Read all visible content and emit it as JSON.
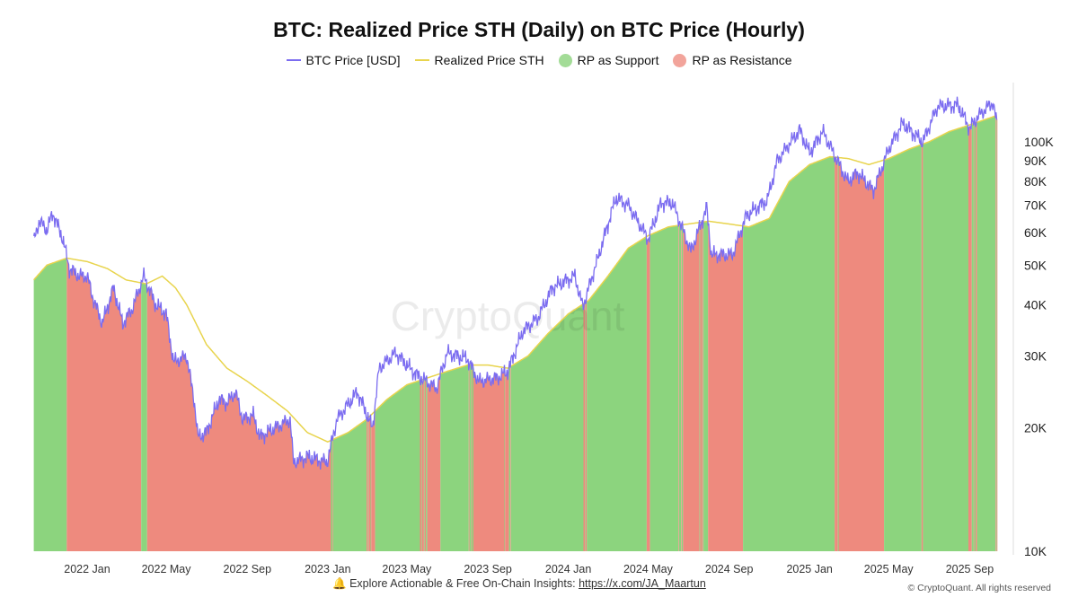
{
  "chart_data": {
    "type": "line",
    "title": "BTC: Realized Price STH (Daily) on BTC Price (Hourly)",
    "y_scale": "log",
    "ylim": [
      10000,
      140000
    ],
    "y_ticks": [
      {
        "v": 10000,
        "label": "10K"
      },
      {
        "v": 20000,
        "label": "20K"
      },
      {
        "v": 30000,
        "label": "30K"
      },
      {
        "v": 40000,
        "label": "40K"
      },
      {
        "v": 50000,
        "label": "50K"
      },
      {
        "v": 60000,
        "label": "60K"
      },
      {
        "v": 70000,
        "label": "70K"
      },
      {
        "v": 80000,
        "label": "80K"
      },
      {
        "v": 90000,
        "label": "90K"
      },
      {
        "v": 100000,
        "label": "100K"
      }
    ],
    "x_ticks": [
      {
        "d": "2022-01-01",
        "label": "2022 Jan"
      },
      {
        "d": "2022-05-01",
        "label": "2022 May"
      },
      {
        "d": "2022-09-01",
        "label": "2022 Sep"
      },
      {
        "d": "2023-01-01",
        "label": "2023 Jan"
      },
      {
        "d": "2023-05-01",
        "label": "2023 May"
      },
      {
        "d": "2023-09-01",
        "label": "2023 Sep"
      },
      {
        "d": "2024-01-01",
        "label": "2024 Jan"
      },
      {
        "d": "2024-05-01",
        "label": "2024 May"
      },
      {
        "d": "2024-09-01",
        "label": "2024 Sep"
      },
      {
        "d": "2025-01-01",
        "label": "2025 Jan"
      },
      {
        "d": "2025-05-01",
        "label": "2025 May"
      },
      {
        "d": "2025-09-01",
        "label": "2025 Sep"
      }
    ],
    "legend_position": "top",
    "grid": false,
    "series": [
      {
        "name": "BTC Price [USD]",
        "color": "#7b6cf0",
        "points": [
          [
            "2021-10-12",
            57000
          ],
          [
            "2021-10-20",
            64000
          ],
          [
            "2021-11-01",
            61000
          ],
          [
            "2021-11-10",
            67000
          ],
          [
            "2021-11-25",
            58000
          ],
          [
            "2021-12-05",
            49000
          ],
          [
            "2021-12-20",
            47000
          ],
          [
            "2022-01-01",
            47000
          ],
          [
            "2022-01-10",
            41500
          ],
          [
            "2022-01-24",
            36000
          ],
          [
            "2022-02-10",
            44000
          ],
          [
            "2022-02-24",
            36000
          ],
          [
            "2022-03-10",
            39000
          ],
          [
            "2022-03-28",
            47000
          ],
          [
            "2022-04-15",
            40000
          ],
          [
            "2022-05-01",
            38000
          ],
          [
            "2022-05-12",
            29000
          ],
          [
            "2022-06-01",
            30000
          ],
          [
            "2022-06-13",
            23000
          ],
          [
            "2022-06-18",
            19000
          ],
          [
            "2022-07-01",
            19500
          ],
          [
            "2022-07-20",
            23500
          ],
          [
            "2022-08-01",
            23000
          ],
          [
            "2022-08-14",
            24500
          ],
          [
            "2022-08-25",
            21000
          ],
          [
            "2022-09-10",
            21500
          ],
          [
            "2022-09-20",
            19000
          ],
          [
            "2022-10-01",
            19500
          ],
          [
            "2022-11-05",
            21000
          ],
          [
            "2022-11-10",
            16500
          ],
          [
            "2022-12-01",
            17000
          ],
          [
            "2022-12-31",
            16500
          ],
          [
            "2023-01-15",
            21000
          ],
          [
            "2023-02-15",
            24500
          ],
          [
            "2023-03-10",
            20000
          ],
          [
            "2023-03-20",
            28000
          ],
          [
            "2023-04-14",
            30500
          ],
          [
            "2023-05-15",
            27000
          ],
          [
            "2023-06-15",
            25000
          ],
          [
            "2023-07-01",
            30500
          ],
          [
            "2023-08-01",
            29500
          ],
          [
            "2023-08-18",
            26000
          ],
          [
            "2023-09-15",
            26500
          ],
          [
            "2023-10-01",
            27500
          ],
          [
            "2023-10-24",
            34500
          ],
          [
            "2023-11-15",
            37000
          ],
          [
            "2023-12-08",
            44000
          ],
          [
            "2024-01-11",
            47000
          ],
          [
            "2024-01-23",
            39500
          ],
          [
            "2024-02-15",
            52000
          ],
          [
            "2024-03-13",
            73000
          ],
          [
            "2024-04-01",
            70000
          ],
          [
            "2024-05-01",
            58000
          ],
          [
            "2024-05-21",
            71000
          ],
          [
            "2024-06-07",
            71000
          ],
          [
            "2024-07-05",
            54000
          ],
          [
            "2024-07-29",
            69000
          ],
          [
            "2024-08-05",
            53000
          ],
          [
            "2024-09-06",
            53000
          ],
          [
            "2024-09-27",
            66000
          ],
          [
            "2024-10-29",
            72000
          ],
          [
            "2024-11-13",
            90000
          ],
          [
            "2024-12-17",
            107000
          ],
          [
            "2025-01-01",
            94000
          ],
          [
            "2025-01-21",
            106000
          ],
          [
            "2025-02-28",
            80000
          ],
          [
            "2025-03-15",
            84000
          ],
          [
            "2025-04-08",
            76000
          ],
          [
            "2025-05-01",
            96000
          ],
          [
            "2025-05-22",
            111000
          ],
          [
            "2025-06-22",
            100000
          ],
          [
            "2025-07-14",
            122000
          ],
          [
            "2025-08-14",
            123000
          ],
          [
            "2025-09-01",
            108000
          ],
          [
            "2025-09-15",
            116000
          ],
          [
            "2025-10-06",
            125000
          ],
          [
            "2025-10-12",
            111000
          ]
        ]
      },
      {
        "name": "Realized Price STH",
        "color": "#e8d44d",
        "points": [
          [
            "2021-10-12",
            46000
          ],
          [
            "2021-11-01",
            50000
          ],
          [
            "2021-12-01",
            52000
          ],
          [
            "2022-01-01",
            51000
          ],
          [
            "2022-02-01",
            49000
          ],
          [
            "2022-03-01",
            46000
          ],
          [
            "2022-04-01",
            45000
          ],
          [
            "2022-04-25",
            47000
          ],
          [
            "2022-05-15",
            44000
          ],
          [
            "2022-06-01",
            40000
          ],
          [
            "2022-07-01",
            32000
          ],
          [
            "2022-08-01",
            28000
          ],
          [
            "2022-09-01",
            26000
          ],
          [
            "2022-10-01",
            24000
          ],
          [
            "2022-11-01",
            22000
          ],
          [
            "2022-12-01",
            19500
          ],
          [
            "2023-01-01",
            18500
          ],
          [
            "2023-02-01",
            19500
          ],
          [
            "2023-03-01",
            21000
          ],
          [
            "2023-04-01",
            23500
          ],
          [
            "2023-05-01",
            25500
          ],
          [
            "2023-06-01",
            26500
          ],
          [
            "2023-07-01",
            27500
          ],
          [
            "2023-08-01",
            28500
          ],
          [
            "2023-09-01",
            28500
          ],
          [
            "2023-10-01",
            28000
          ],
          [
            "2023-11-01",
            30000
          ],
          [
            "2023-12-01",
            34000
          ],
          [
            "2024-01-01",
            38000
          ],
          [
            "2024-02-01",
            41000
          ],
          [
            "2024-03-01",
            47000
          ],
          [
            "2024-04-01",
            55000
          ],
          [
            "2024-05-01",
            59000
          ],
          [
            "2024-06-01",
            62000
          ],
          [
            "2024-07-01",
            63000
          ],
          [
            "2024-08-01",
            64000
          ],
          [
            "2024-09-01",
            63000
          ],
          [
            "2024-10-01",
            62000
          ],
          [
            "2024-11-01",
            65000
          ],
          [
            "2024-12-01",
            80000
          ],
          [
            "2025-01-01",
            88000
          ],
          [
            "2025-02-01",
            92000
          ],
          [
            "2025-03-01",
            91000
          ],
          [
            "2025-04-01",
            88000
          ],
          [
            "2025-05-01",
            91000
          ],
          [
            "2025-06-01",
            96000
          ],
          [
            "2025-07-01",
            100000
          ],
          [
            "2025-08-01",
            106000
          ],
          [
            "2025-09-01",
            110000
          ],
          [
            "2025-10-12",
            116000
          ]
        ]
      }
    ],
    "fills": [
      {
        "name": "RP as Support",
        "color": "#8cd47e"
      },
      {
        "name": "RP as Resistance",
        "color": "#ee8a7e"
      }
    ]
  },
  "watermark": "CryptoQuant",
  "footer": {
    "bell_icon": "bell-icon",
    "text": "Explore Actionable & Free On-Chain Insights:",
    "link": "https://x.com/JA_Maartun",
    "copyright": "© CryptoQuant. All rights reserved"
  }
}
